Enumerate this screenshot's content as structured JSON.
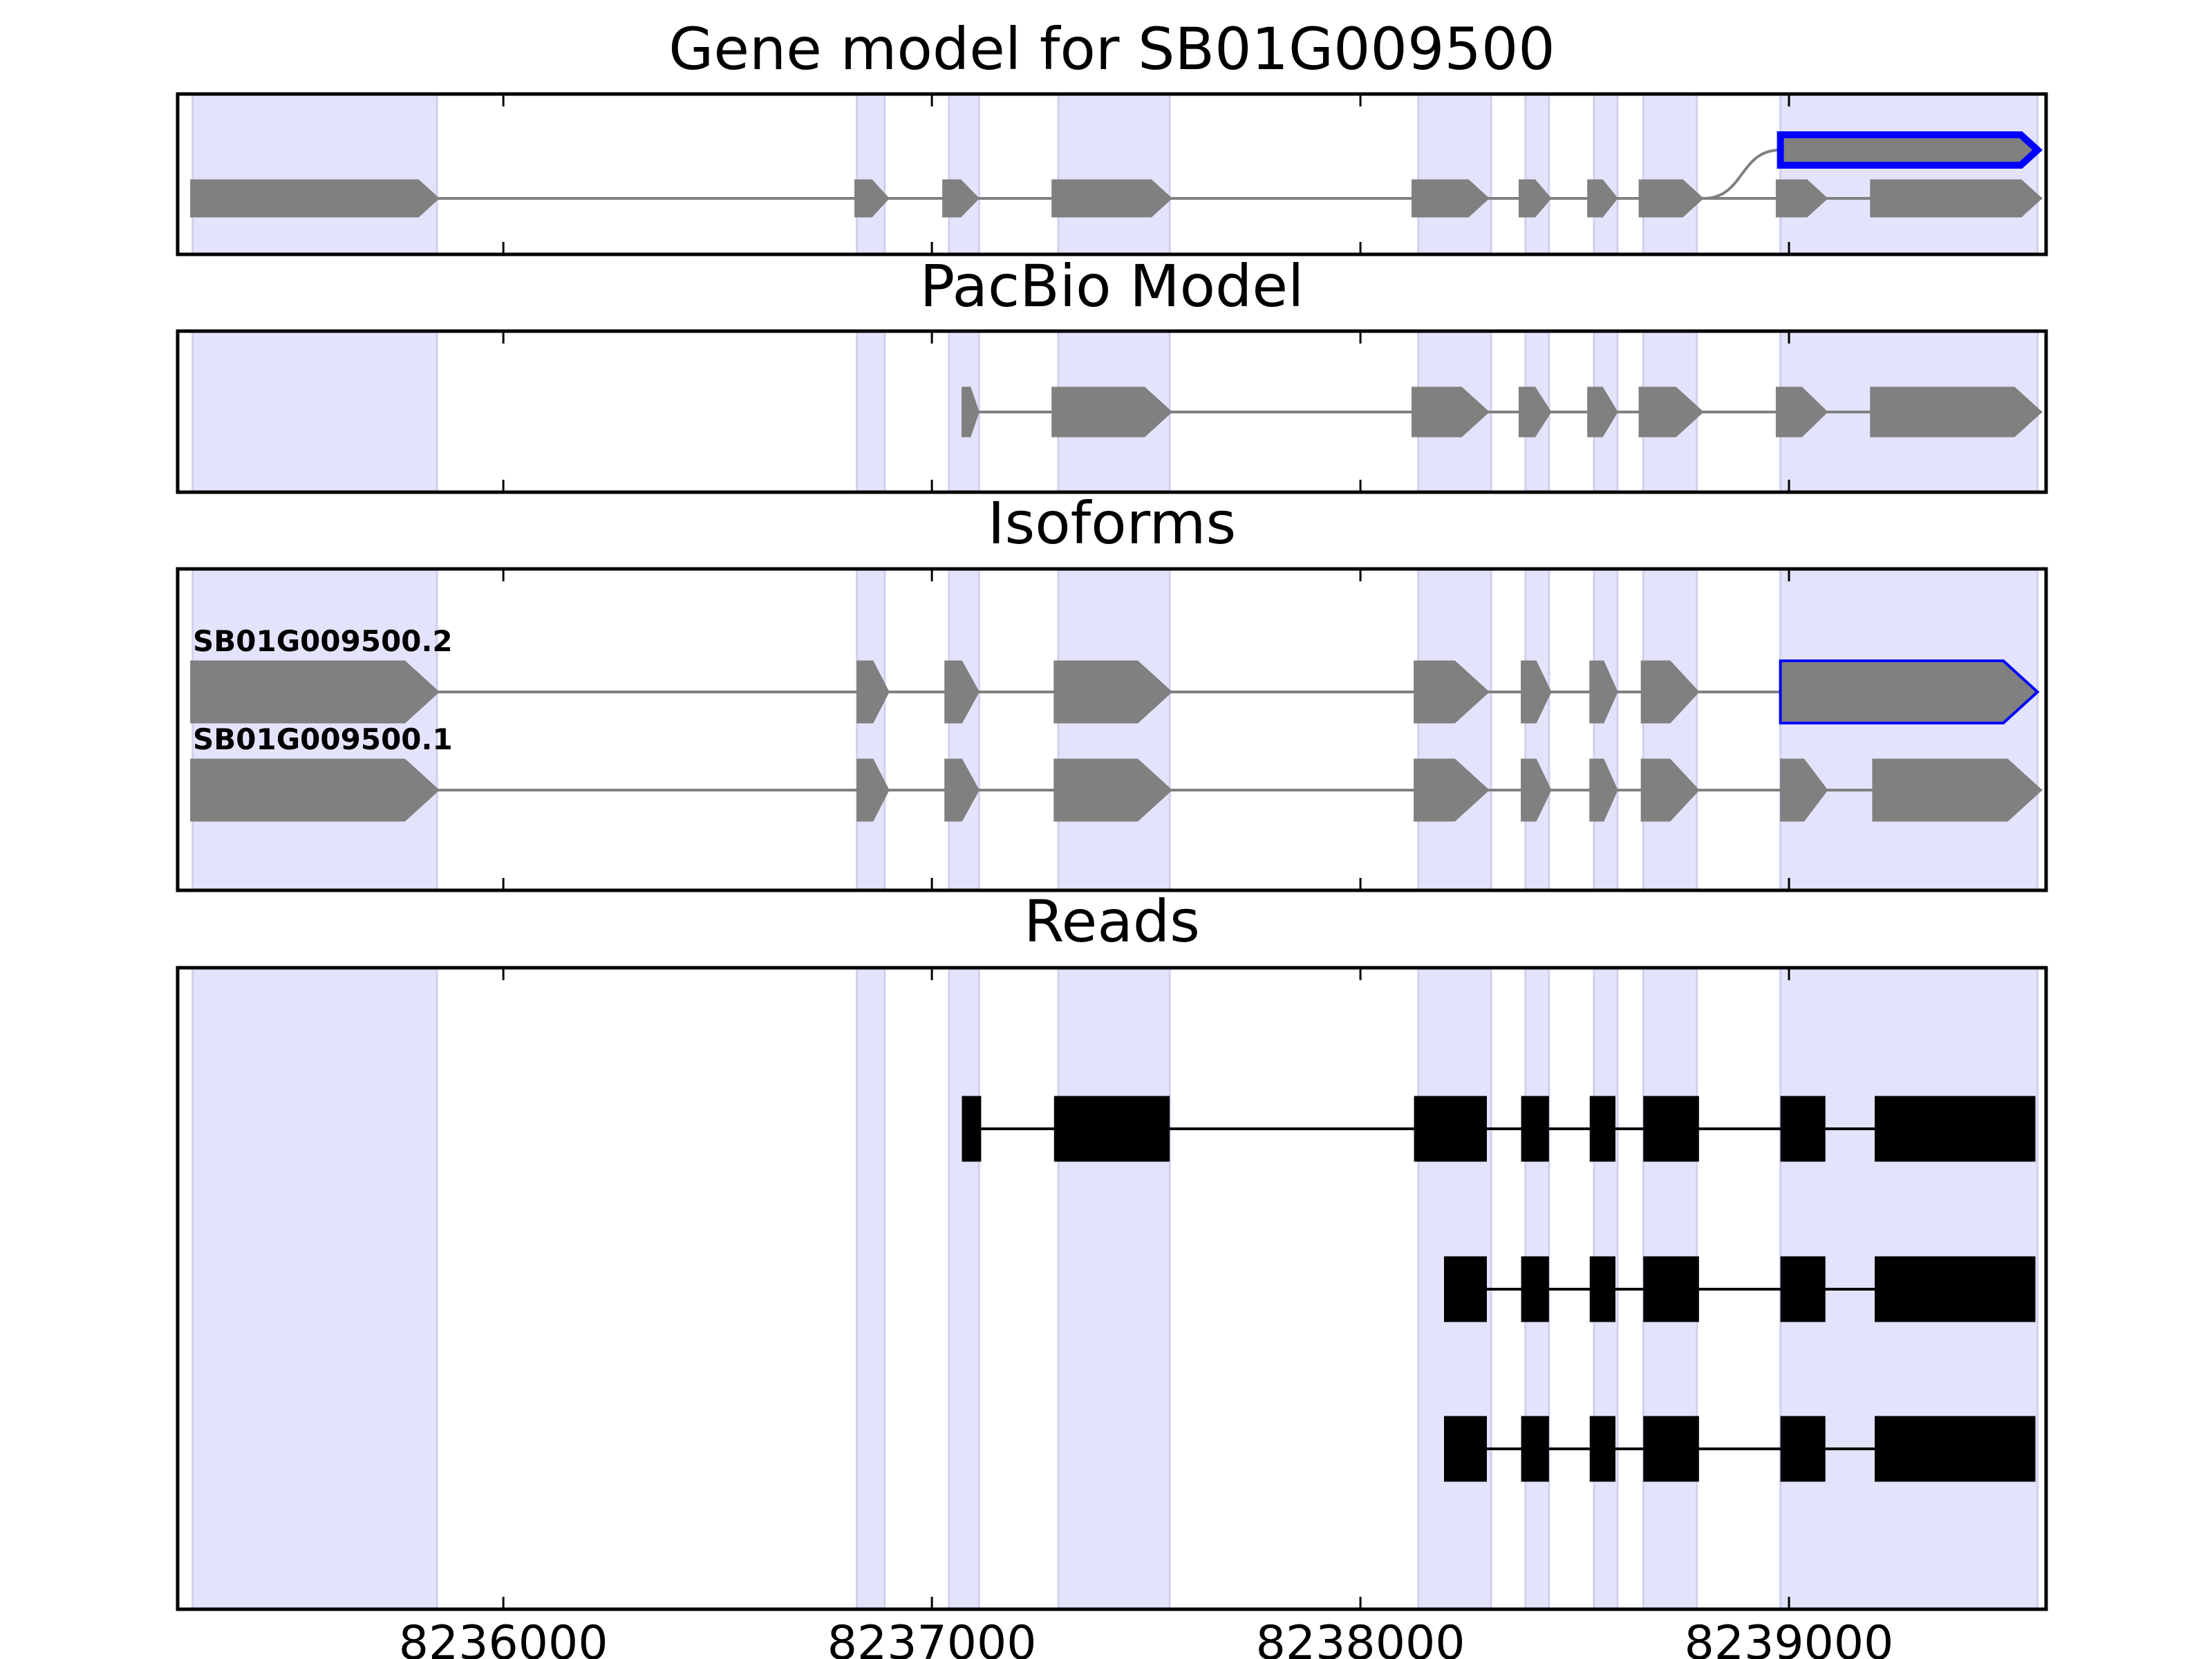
{
  "chart_data": {
    "type": "gene-structure",
    "xlim": [
      8235240,
      8239600
    ],
    "x_ticks": [
      8236000,
      8237000,
      8238000,
      8239000
    ],
    "tick_labels": [
      "8236000",
      "8237000",
      "8238000",
      "8239000"
    ],
    "colors": {
      "exon_fill": "#808080",
      "intron_line": "#808080",
      "highlight_edge": "#0000ff",
      "shading": "#e3e3fb",
      "read_fill": "#000000",
      "frame": "#000000"
    },
    "shaded_regions": [
      [
        8235275,
        8235845
      ],
      [
        8236825,
        8236890
      ],
      [
        8237040,
        8237110
      ],
      [
        8237295,
        8237555
      ],
      [
        8238135,
        8238305
      ],
      [
        8238385,
        8238440
      ],
      [
        8238545,
        8238600
      ],
      [
        8238660,
        8238785
      ],
      [
        8238980,
        8239580
      ]
    ],
    "panels": [
      {
        "title": "Gene model for SB01G009500",
        "tracks": [
          {
            "kind": "gene",
            "exons": [
              [
                8235270,
                8235850
              ],
              [
                8236820,
                8236900
              ],
              [
                8237025,
                8237110
              ],
              [
                8237280,
                8237560
              ],
              [
                8238120,
                8238300
              ],
              [
                8238370,
                8238445
              ],
              [
                8238530,
                8238600
              ],
              [
                8238650,
                8238800
              ],
              [
                8238970,
                8239090
              ],
              [
                8239190,
                8239590
              ]
            ]
          },
          {
            "kind": "highlight",
            "exons": [
              [
                8238980,
                8239580
              ]
            ],
            "joins_from": 8238800
          }
        ]
      },
      {
        "title": "PacBio Model",
        "tracks": [
          {
            "kind": "gene",
            "exons": [
              [
                8237070,
                8237110
              ],
              [
                8237280,
                8237560
              ],
              [
                8238120,
                8238300
              ],
              [
                8238370,
                8238445
              ],
              [
                8238530,
                8238600
              ],
              [
                8238650,
                8238800
              ],
              [
                8238970,
                8239090
              ],
              [
                8239190,
                8239590
              ]
            ]
          }
        ]
      },
      {
        "title": "Isoforms",
        "tracks": [
          {
            "kind": "gene",
            "label": "SB01G009500.2",
            "highlight_last": true,
            "exons": [
              [
                8235270,
                8235850
              ],
              [
                8236825,
                8236900
              ],
              [
                8237030,
                8237110
              ],
              [
                8237285,
                8237560
              ],
              [
                8238125,
                8238300
              ],
              [
                8238375,
                8238445
              ],
              [
                8238535,
                8238600
              ],
              [
                8238655,
                8238790
              ],
              [
                8238980,
                8239580
              ]
            ]
          },
          {
            "kind": "gene",
            "label": "SB01G009500.1",
            "exons": [
              [
                8235270,
                8235850
              ],
              [
                8236825,
                8236900
              ],
              [
                8237030,
                8237110
              ],
              [
                8237285,
                8237560
              ],
              [
                8238125,
                8238300
              ],
              [
                8238375,
                8238445
              ],
              [
                8238535,
                8238600
              ],
              [
                8238655,
                8238790
              ],
              [
                8238980,
                8239090
              ],
              [
                8239195,
                8239590
              ]
            ]
          }
        ]
      },
      {
        "title": "Reads",
        "tracks": [
          {
            "kind": "read",
            "exons": [
              [
                8237070,
                8237115
              ],
              [
                8237285,
                8237555
              ],
              [
                8238125,
                8238295
              ],
              [
                8238375,
                8238440
              ],
              [
                8238535,
                8238595
              ],
              [
                8238660,
                8238790
              ],
              [
                8238980,
                8239085
              ],
              [
                8239200,
                8239575
              ]
            ]
          },
          {
            "kind": "read",
            "exons": [
              [
                8238195,
                8238295
              ],
              [
                8238375,
                8238440
              ],
              [
                8238535,
                8238595
              ],
              [
                8238660,
                8238790
              ],
              [
                8238980,
                8239085
              ],
              [
                8239200,
                8239575
              ]
            ]
          },
          {
            "kind": "read",
            "exons": [
              [
                8238195,
                8238295
              ],
              [
                8238375,
                8238440
              ],
              [
                8238535,
                8238595
              ],
              [
                8238660,
                8238790
              ],
              [
                8238980,
                8239085
              ],
              [
                8239200,
                8239575
              ]
            ]
          }
        ]
      }
    ]
  }
}
